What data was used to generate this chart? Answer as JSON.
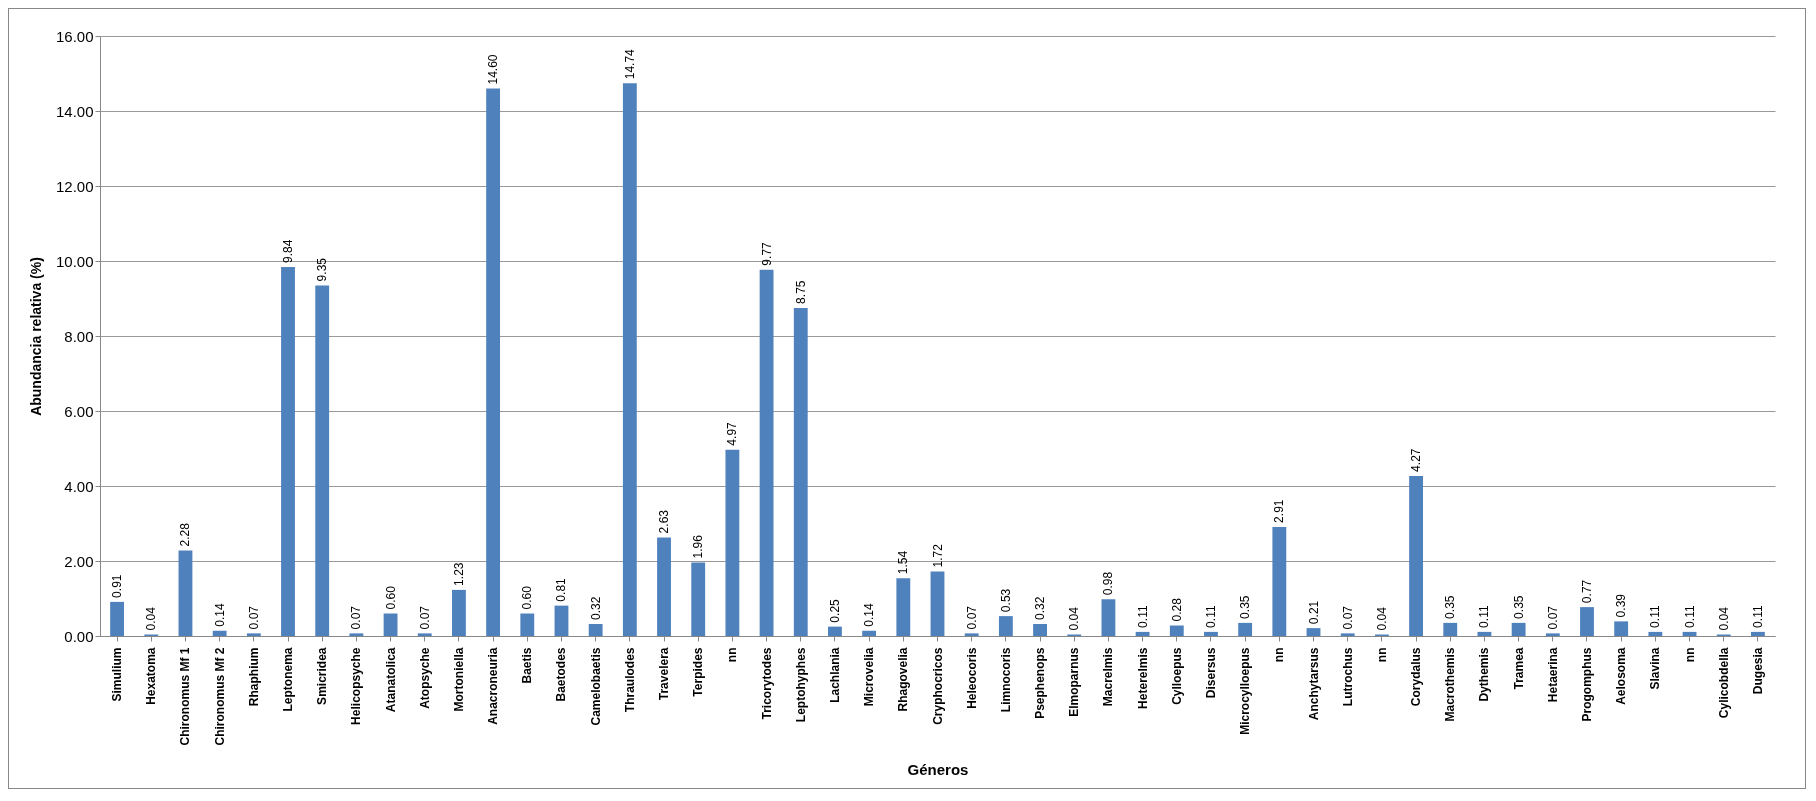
{
  "chart_data": {
    "type": "bar",
    "xlabel": "Géneros",
    "ylabel": "Abundancia relativa (%)",
    "categories": [
      "Simulium",
      "Hexatoma",
      "Chironomus Mf 1",
      "Chironomus Mf 2",
      "Rhaphium",
      "Leptonema",
      "Smicridea",
      "Helicopsyche",
      "Atanatolica",
      "Atopsyche",
      "Mortoniella",
      "Anacroneuria",
      "Baetis",
      "Baetodes",
      "Camelobaetis",
      "Thraulodes",
      "Travelera",
      "Terpides",
      "nn",
      "Tricorytodes",
      "Leptohyphes",
      "Lachlania",
      "Microvelia",
      "Rhagovelia",
      "Cryphocricos",
      "Heleocoris",
      "Limnocoris",
      "Psephenops",
      "Elmoparnus",
      "Macrelmis",
      "Heterelmis",
      "Cylloepus",
      "Disersus",
      "Microcylloepus",
      "nn",
      "Anchytarsus",
      "Lutrochus",
      "nn",
      "Corydalus",
      "Macrothemis",
      "Dythemis",
      "Tramea",
      "Hetaerina",
      "Progomphus",
      "Aelosoma",
      "Slavina",
      "nn",
      "Cylicobdella",
      "Dugesia"
    ],
    "values": [
      0.91,
      0.04,
      2.28,
      0.14,
      0.07,
      9.84,
      9.35,
      0.07,
      0.6,
      0.07,
      1.23,
      14.6,
      0.6,
      0.81,
      0.32,
      14.74,
      2.63,
      1.96,
      4.97,
      9.77,
      8.75,
      0.25,
      0.14,
      1.54,
      1.72,
      0.07,
      0.53,
      0.32,
      0.04,
      0.98,
      0.11,
      0.28,
      0.11,
      0.35,
      2.91,
      0.21,
      0.07,
      0.04,
      4.27,
      0.35,
      0.11,
      0.35,
      0.07,
      0.77,
      0.39,
      0.11,
      0.11,
      0.04,
      0.11
    ],
    "value_labels": [
      "0.91",
      "0.04",
      "2.28",
      "0.14",
      "0.07",
      "9.84",
      "9.35",
      "0.07",
      "0.60",
      "0.07",
      "1.23",
      "14.60",
      "0.60",
      "0.81",
      "0.32",
      "14.74",
      "2.63",
      "1.96",
      "4.97",
      "9.77",
      "8.75",
      "0.25",
      "0.14",
      "1.54",
      "1.72",
      "0.07",
      "0.53",
      "0.32",
      "0.04",
      "0.98",
      "0.11",
      "0.28",
      "0.11",
      "0.35",
      "2.91",
      "0.21",
      "0.07",
      "0.04",
      "4.27",
      "0.35",
      "0.11",
      "0.35",
      "0.07",
      "0.77",
      "0.39",
      "0.11",
      "0.11",
      "0.04",
      "0.11"
    ],
    "color": "#4f81bd",
    "ylim": [
      0,
      16
    ],
    "yticks": [
      {
        "value": 0,
        "label": "0.00"
      },
      {
        "value": 2,
        "label": "2.00"
      },
      {
        "value": 4,
        "label": "4.00"
      },
      {
        "value": 6,
        "label": "6.00"
      },
      {
        "value": 8,
        "label": "8.00"
      },
      {
        "value": 10,
        "label": "10.00"
      },
      {
        "value": 12,
        "label": "12.00"
      },
      {
        "value": 14,
        "label": "14.00"
      },
      {
        "value": 16,
        "label": "16.00"
      }
    ],
    "grid": "y"
  }
}
